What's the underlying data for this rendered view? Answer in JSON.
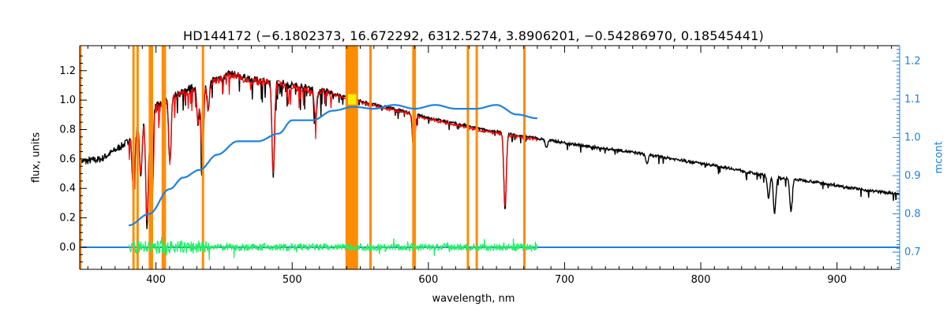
{
  "chart_data": {
    "type": "line",
    "title": "HD144172   (−6.1802373, 16.672292, 6312.5274, 3.8906201, −0.54286970, 0.18545441)",
    "xlabel": "wavelength, nm",
    "ylabel": "flux, units",
    "y2label": "mcont",
    "xlim": [
      344,
      946
    ],
    "ylim": [
      -0.15,
      1.37
    ],
    "y2lim": [
      0.655,
      1.24
    ],
    "x_ticks": [
      400,
      500,
      600,
      700,
      800,
      900
    ],
    "y_ticks": [
      0.0,
      0.2,
      0.4,
      0.6,
      0.8,
      1.0,
      1.2
    ],
    "y2_ticks": [
      0.7,
      0.8,
      0.9,
      1.0,
      1.1,
      1.2
    ],
    "x_tick_labels": [
      "400",
      "500",
      "600",
      "700",
      "800",
      "900"
    ],
    "y_tick_labels": [
      "0.0",
      "0.2",
      "0.4",
      "0.6",
      "0.8",
      "1.0",
      "1.2"
    ],
    "y2_tick_labels": [
      "0.7",
      "0.8",
      "0.9",
      "1.0",
      "1.1",
      "1.2"
    ],
    "grid": false,
    "colors": {
      "observed": "#000000",
      "model": "#ff0000",
      "residual": "#22ee66",
      "mcont": "#1e82dc",
      "mask": "#ff8c00",
      "highlight": "#ffee00"
    },
    "mask_lines_nm": [
      344.5,
      383.5,
      386.5,
      395.5,
      397,
      405,
      406.5,
      434.5,
      540,
      541.5,
      543,
      544.5,
      546,
      547.5,
      557.5,
      589,
      590,
      629,
      635.5,
      670.5
    ],
    "observed_spectrum": {
      "x": [
        344,
        360,
        380,
        390,
        400,
        420,
        440,
        455,
        470,
        490,
        500,
        520,
        540,
        560,
        580,
        600,
        620,
        640,
        660,
        680,
        700,
        720,
        740,
        760,
        780,
        800,
        820,
        840,
        860,
        880,
        900,
        920,
        946
      ],
      "y": [
        0.58,
        0.6,
        0.72,
        0.85,
        0.97,
        1.06,
        1.13,
        1.18,
        1.14,
        1.12,
        1.1,
        1.07,
        1.02,
        0.97,
        0.93,
        0.88,
        0.84,
        0.8,
        0.77,
        0.74,
        0.71,
        0.68,
        0.66,
        0.63,
        0.6,
        0.57,
        0.54,
        0.5,
        0.47,
        0.45,
        0.42,
        0.39,
        0.36
      ]
    },
    "absorption_lines": [
      {
        "x": 383.5,
        "depth": 0.4
      },
      {
        "x": 388.9,
        "depth": 0.35
      },
      {
        "x": 393.4,
        "depth": 0.75
      },
      {
        "x": 396.8,
        "depth": 0.8
      },
      {
        "x": 410.2,
        "depth": 0.45
      },
      {
        "x": 430.8,
        "depth": 0.25
      },
      {
        "x": 434.0,
        "depth": 0.55
      },
      {
        "x": 438.4,
        "depth": 0.2
      },
      {
        "x": 486.1,
        "depth": 0.65
      },
      {
        "x": 517.3,
        "depth": 0.2
      },
      {
        "x": 589.0,
        "depth": 0.15
      },
      {
        "x": 589.6,
        "depth": 0.12
      },
      {
        "x": 656.3,
        "depth": 0.52
      },
      {
        "x": 686.7,
        "depth": 0.05
      },
      {
        "x": 760.5,
        "depth": 0.06
      },
      {
        "x": 849.8,
        "depth": 0.15
      },
      {
        "x": 854.2,
        "depth": 0.25
      },
      {
        "x": 866.2,
        "depth": 0.22
      }
    ],
    "model_spectrum": {
      "x_range": [
        380,
        680
      ]
    },
    "residual": {
      "x_range": [
        380,
        680
      ],
      "baseline": 0.0,
      "baseline_extent": [
        344,
        946
      ]
    },
    "mcont": {
      "x": [
        380,
        395,
        410,
        420,
        432,
        445,
        460,
        475,
        490,
        500,
        515,
        530,
        545,
        560,
        575,
        590,
        605,
        620,
        635,
        650,
        665,
        680
      ],
      "y": [
        0.77,
        0.8,
        0.865,
        0.895,
        0.915,
        0.955,
        0.99,
        0.99,
        1.01,
        1.045,
        1.045,
        1.07,
        1.08,
        1.075,
        1.085,
        1.075,
        1.085,
        1.075,
        1.075,
        1.085,
        1.06,
        1.05
      ]
    }
  }
}
